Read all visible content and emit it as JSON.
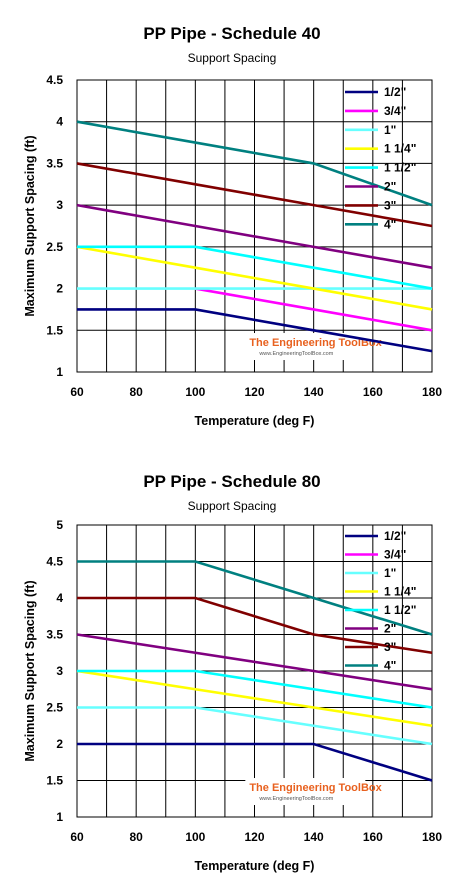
{
  "charts": [
    {
      "title": "PP Pipe - Schedule 40",
      "subtitle": "Support Spacing",
      "watermark": {
        "main": "The Engineering ToolBox",
        "sub": "www.EngineeringToolBox.com"
      }
    },
    {
      "title": "PP Pipe - Schedule 80",
      "subtitle": "Support Spacing",
      "watermark": {
        "main": "The Engineering ToolBox",
        "sub": "www.EngineeringToolBox.com"
      }
    }
  ],
  "chart_data": [
    {
      "type": "line",
      "title": "PP Pipe - Schedule 40",
      "subtitle": "Support Spacing",
      "xlabel": "Temperature (deg F)",
      "ylabel": "Maximum Support Spacing (ft)",
      "xlim": [
        60,
        180
      ],
      "ylim": [
        1,
        4.5
      ],
      "xticks": [
        60,
        80,
        100,
        120,
        140,
        160,
        180
      ],
      "yticks": [
        1,
        1.5,
        2,
        2.5,
        3,
        3.5,
        4,
        4.5
      ],
      "xtick_labels": [
        "60",
        "80",
        "100",
        "120",
        "140",
        "160",
        "180"
      ],
      "ytick_labels": [
        "1",
        "1.5",
        "2",
        "2.5",
        "3",
        "3.5",
        "4",
        "4.5"
      ],
      "x_minor_grid_step": 10,
      "grid": true,
      "legend_position": "top-right",
      "series": [
        {
          "name": "1/2\"",
          "color": "#000080",
          "x": [
            60,
            100,
            140,
            180
          ],
          "y": [
            1.75,
            1.75,
            1.5,
            1.25
          ]
        },
        {
          "name": "3/4\"",
          "color": "#ff00ff",
          "x": [
            100,
            140,
            180
          ],
          "y": [
            2.0,
            1.75,
            1.5
          ]
        },
        {
          "name": "1\"",
          "color": "#66ffff",
          "x": [
            60,
            100,
            140,
            180
          ],
          "y": [
            2.0,
            2.0,
            2.0,
            2.0
          ]
        },
        {
          "name": "1 1/4\"",
          "color": "#ffff00",
          "x": [
            60,
            100,
            140,
            180
          ],
          "y": [
            2.5,
            2.25,
            2.0,
            1.75
          ]
        },
        {
          "name": "1 1/2\"",
          "color": "#00ffff",
          "x": [
            60,
            100,
            140,
            180
          ],
          "y": [
            2.5,
            2.5,
            2.25,
            2.0
          ]
        },
        {
          "name": "2\"",
          "color": "#800080",
          "x": [
            60,
            100,
            140,
            180
          ],
          "y": [
            3.0,
            2.75,
            2.5,
            2.25
          ]
        },
        {
          "name": "3\"",
          "color": "#800000",
          "x": [
            60,
            100,
            140,
            180
          ],
          "y": [
            3.5,
            3.25,
            3.0,
            2.75
          ]
        },
        {
          "name": "4\"",
          "color": "#008080",
          "x": [
            60,
            100,
            140,
            180
          ],
          "y": [
            4.0,
            3.75,
            3.5,
            3.0
          ]
        }
      ]
    },
    {
      "type": "line",
      "title": "PP Pipe - Schedule 80",
      "subtitle": "Support Spacing",
      "xlabel": "Temperature (deg F)",
      "ylabel": "Maximum Support Spacing (ft)",
      "xlim": [
        60,
        180
      ],
      "ylim": [
        1,
        5
      ],
      "xticks": [
        60,
        80,
        100,
        120,
        140,
        160,
        180
      ],
      "yticks": [
        1,
        1.5,
        2,
        2.5,
        3,
        3.5,
        4,
        4.5,
        5
      ],
      "xtick_labels": [
        "60",
        "80",
        "100",
        "120",
        "140",
        "160",
        "180"
      ],
      "ytick_labels": [
        "1",
        "1.5",
        "2",
        "2.5",
        "3",
        "3.5",
        "4",
        "4.5",
        "5"
      ],
      "x_minor_grid_step": 10,
      "grid": true,
      "legend_position": "top-right",
      "series": [
        {
          "name": "1/2\"",
          "color": "#000080",
          "x": [
            60,
            100,
            140,
            180
          ],
          "y": [
            2.0,
            2.0,
            2.0,
            1.5
          ]
        },
        {
          "name": "3/4\"",
          "color": "#ff00ff",
          "x": [],
          "y": []
        },
        {
          "name": "1\"",
          "color": "#66ffff",
          "x": [
            60,
            100,
            140,
            180
          ],
          "y": [
            2.5,
            2.5,
            2.25,
            2.0
          ]
        },
        {
          "name": "1 1/4\"",
          "color": "#ffff00",
          "x": [
            60,
            100,
            140,
            180
          ],
          "y": [
            3.0,
            2.75,
            2.5,
            2.25
          ]
        },
        {
          "name": "1 1/2\"",
          "color": "#00ffff",
          "x": [
            60,
            100,
            140,
            180
          ],
          "y": [
            3.0,
            3.0,
            2.75,
            2.5
          ]
        },
        {
          "name": "2\"",
          "color": "#800080",
          "x": [
            60,
            100,
            140,
            180
          ],
          "y": [
            3.5,
            3.25,
            3.0,
            2.75
          ]
        },
        {
          "name": "3\"",
          "color": "#800000",
          "x": [
            60,
            100,
            140,
            180
          ],
          "y": [
            4.0,
            4.0,
            3.5,
            3.25
          ]
        },
        {
          "name": "4\"",
          "color": "#008080",
          "x": [
            60,
            100,
            140,
            180
          ],
          "y": [
            4.5,
            4.5,
            4.0,
            3.5
          ]
        }
      ]
    }
  ]
}
